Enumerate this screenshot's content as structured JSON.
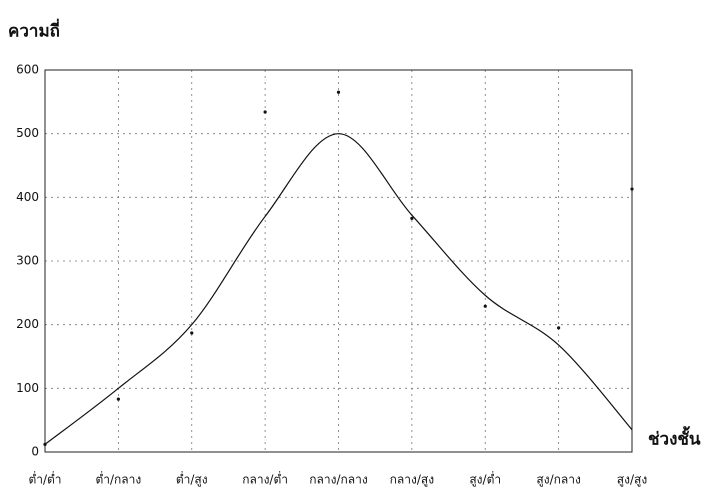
{
  "chart_data": {
    "type": "line",
    "y_label": "ความถี่",
    "x_label": "ช่วงชั้น",
    "categories": [
      "ต่ำ/ต่ำ",
      "ต่ำ/กลาง",
      "ต่ำ/สูง",
      "กลาง/ต่ำ",
      "กลาง/กลาง",
      "กลาง/สูง",
      "สูง/ต่ำ",
      "สูง/กลาง",
      "สูง/สูง"
    ],
    "series": [
      {
        "color": "#111111",
        "style": "points",
        "values": [
          12,
          83,
          187,
          534,
          565,
          367,
          229,
          195,
          413
        ]
      },
      {
        "color": "#111111",
        "style": "smooth-line",
        "values": [
          12,
          100,
          200,
          370,
          500,
          372,
          246,
          168,
          35
        ]
      }
    ],
    "ylim": [
      0,
      600
    ],
    "yticks": [
      0,
      100,
      200,
      300,
      400,
      500,
      600
    ],
    "grid": true
  }
}
